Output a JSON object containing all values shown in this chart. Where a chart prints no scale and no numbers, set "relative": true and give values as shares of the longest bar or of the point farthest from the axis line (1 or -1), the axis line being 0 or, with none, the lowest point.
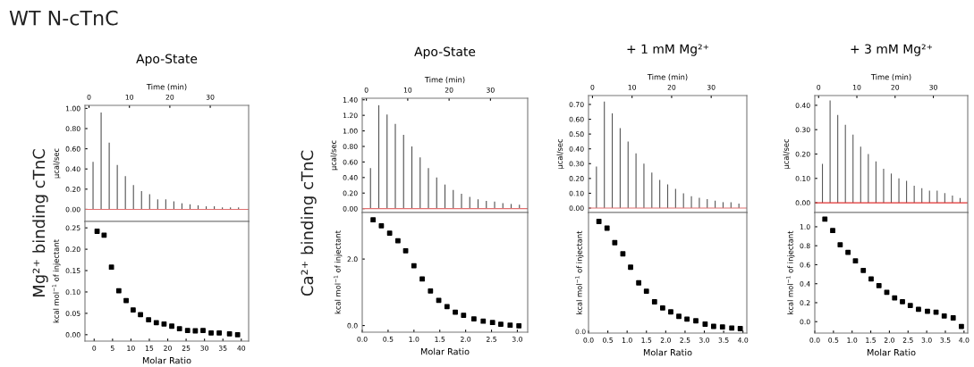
{
  "chart_data": [
    {
      "type": "bar",
      "title": "Apo-State",
      "xlabel": "Time (min)",
      "ylabel": "µcal/sec",
      "annotations": [
        "WT N-cTnC",
        "Mg²⁺ binding cTnC"
      ],
      "xlim": [
        -1,
        39.5
      ],
      "xticks": [
        0,
        10,
        20,
        30
      ],
      "ylim": [
        -0.12,
        1.03
      ],
      "yticks": [
        {
          "value": 0,
          "label": "0.00"
        },
        {
          "value": 0.2,
          "label": "0.20"
        },
        {
          "value": 0.4,
          "label": "0.40"
        },
        {
          "value": 0.6,
          "label": "0.60"
        },
        {
          "value": 0.8,
          "label": "0.80"
        },
        {
          "value": 1.0,
          "label": "1.00"
        }
      ],
      "series": [
        {
          "type": "bar",
          "color": "#555555",
          "x": [
            1,
            3,
            5,
            7,
            9,
            11,
            13,
            15,
            17,
            19,
            21,
            23,
            25,
            27,
            29,
            31,
            33,
            35,
            37
          ],
          "values": [
            0.47,
            0.96,
            0.66,
            0.44,
            0.33,
            0.24,
            0.18,
            0.15,
            0.1,
            0.1,
            0.08,
            0.06,
            0.05,
            0.04,
            0.03,
            0.03,
            0.02,
            0.02,
            0.02
          ]
        },
        {
          "type": "line",
          "color": "#e07070",
          "x": [
            -1,
            39.5
          ],
          "values": [
            0,
            0
          ]
        }
      ]
    },
    {
      "type": "scatter",
      "xlabel": "Molar Ratio",
      "ylabel": "kcal mol$^{−1}$ of injectant",
      "marker": "square",
      "xlim": [
        -2.5,
        42
      ],
      "xticks": [
        0,
        5,
        10,
        15,
        20,
        25,
        30,
        35,
        40
      ],
      "ylim": [
        -0.015,
        0.265
      ],
      "yticks": [
        {
          "value": 0,
          "label": "0.00"
        },
        {
          "value": 0.05,
          "label": "0.05"
        },
        {
          "value": 0.1,
          "label": "0.10"
        },
        {
          "value": 0.15,
          "label": "0.15"
        },
        {
          "value": 0.2,
          "label": "0.20"
        },
        {
          "value": 0.25,
          "label": "0.25"
        }
      ],
      "series": [
        {
          "color": "#000000",
          "x": [
            0.8,
            2.7,
            4.7,
            6.7,
            8.7,
            10.6,
            12.6,
            14.8,
            16.9,
            19,
            21.1,
            23.2,
            25.4,
            27.5,
            29.6,
            31.8,
            34,
            36.8,
            39
          ],
          "values": [
            0.242,
            0.233,
            0.158,
            0.103,
            0.08,
            0.058,
            0.047,
            0.035,
            0.028,
            0.025,
            0.02,
            0.014,
            0.01,
            0.009,
            0.01,
            0.004,
            0.004,
            0.002,
            0.0
          ]
        }
      ]
    },
    {
      "type": "bar",
      "title": "Apo-State",
      "xlabel": "Time (min)",
      "ylabel": "µcal/sec",
      "annotations": [
        "Ca²⁺ binding cTnC"
      ],
      "xlim": [
        -1,
        39
      ],
      "xticks": [
        0,
        10,
        20,
        30
      ],
      "ylim": [
        -0.05,
        1.42
      ],
      "yticks": [
        {
          "value": 0,
          "label": "0.00"
        },
        {
          "value": 0.2,
          "label": "0.20"
        },
        {
          "value": 0.4,
          "label": "0.40"
        },
        {
          "value": 0.6,
          "label": "0.60"
        },
        {
          "value": 0.8,
          "label": "0.80"
        },
        {
          "value": 1.0,
          "label": "1.00"
        },
        {
          "value": 1.2,
          "label": "1.20"
        },
        {
          "value": 1.4,
          "label": "1.40"
        }
      ],
      "series": [
        {
          "type": "bar",
          "color": "#555555",
          "x": [
            1,
            3,
            5,
            7,
            9,
            11,
            13,
            15,
            17,
            19,
            21,
            23,
            25,
            27,
            29,
            31,
            33,
            35,
            37
          ],
          "values": [
            0.52,
            1.33,
            1.21,
            1.09,
            0.95,
            0.8,
            0.66,
            0.52,
            0.4,
            0.31,
            0.24,
            0.19,
            0.15,
            0.12,
            0.1,
            0.09,
            0.07,
            0.06,
            0.05
          ]
        },
        {
          "type": "line",
          "color": "#e07070",
          "x": [
            -1,
            39
          ],
          "values": [
            0,
            0
          ]
        }
      ]
    },
    {
      "type": "scatter",
      "xlabel": "Molar Ratio",
      "ylabel": "kcal mol$^{−1}$ of injectant",
      "marker": "square",
      "xlim": [
        0,
        3.2
      ],
      "xticks": [
        {
          "value": 0,
          "label": "0.0"
        },
        {
          "value": 0.5,
          "label": "0.5"
        },
        {
          "value": 1,
          "label": "1.0"
        },
        {
          "value": 1.5,
          "label": "1.5"
        },
        {
          "value": 2,
          "label": "2.0"
        },
        {
          "value": 2.5,
          "label": "2.5"
        },
        {
          "value": 3,
          "label": "3.0"
        }
      ],
      "ylim": [
        -0.2,
        3.4
      ],
      "yticks": [
        {
          "value": 0,
          "label": "0.0"
        },
        {
          "value": 2,
          "label": "2.0"
        }
      ],
      "series": [
        {
          "color": "#000000",
          "x": [
            0.21,
            0.37,
            0.53,
            0.69,
            0.84,
            1.0,
            1.16,
            1.32,
            1.48,
            1.64,
            1.8,
            1.96,
            2.16,
            2.34,
            2.52,
            2.68,
            2.86,
            3.03
          ],
          "values": [
            3.18,
            3.0,
            2.78,
            2.55,
            2.25,
            1.8,
            1.4,
            1.04,
            0.76,
            0.57,
            0.4,
            0.31,
            0.2,
            0.13,
            0.09,
            0.04,
            0.01,
            -0.01
          ]
        }
      ]
    },
    {
      "type": "bar",
      "title": "+ 1 mM Mg²⁺",
      "xlabel": "Time (min)",
      "ylabel": "µcal/sec",
      "xlim": [
        -1,
        39
      ],
      "xticks": [
        0,
        10,
        20,
        30
      ],
      "ylim": [
        -0.03,
        0.76
      ],
      "yticks": [
        {
          "value": 0,
          "label": "0.00"
        },
        {
          "value": 0.1,
          "label": "0.10"
        },
        {
          "value": 0.2,
          "label": "0.20"
        },
        {
          "value": 0.3,
          "label": "0.30"
        },
        {
          "value": 0.4,
          "label": "0.40"
        },
        {
          "value": 0.5,
          "label": "0.50"
        },
        {
          "value": 0.6,
          "label": "0.60"
        },
        {
          "value": 0.7,
          "label": "0.70"
        }
      ],
      "series": [
        {
          "type": "bar",
          "color": "#555555",
          "x": [
            1,
            3,
            5,
            7,
            9,
            11,
            13,
            15,
            17,
            19,
            21,
            23,
            25,
            27,
            29,
            31,
            33,
            35,
            37
          ],
          "values": [
            0.28,
            0.72,
            0.64,
            0.54,
            0.45,
            0.37,
            0.3,
            0.24,
            0.19,
            0.16,
            0.13,
            0.1,
            0.08,
            0.07,
            0.06,
            0.05,
            0.04,
            0.04,
            0.03
          ]
        },
        {
          "type": "line",
          "color": "#e07070",
          "x": [
            -1,
            39
          ],
          "values": [
            0,
            0
          ]
        }
      ]
    },
    {
      "type": "scatter",
      "xlabel": "Molar Ratio",
      "ylabel": "kcal mol$^{−1}$ of injectant",
      "marker": "square",
      "relative": true,
      "annotations": [
        "0.0"
      ],
      "xlim": [
        0,
        4.1
      ],
      "xticks": [
        {
          "value": 0,
          "label": "0.0"
        },
        {
          "value": 0.5,
          "label": "0.5"
        },
        {
          "value": 1,
          "label": "1.0"
        },
        {
          "value": 1.5,
          "label": "1.5"
        },
        {
          "value": 2,
          "label": "2.0"
        },
        {
          "value": 2.5,
          "label": "2.5"
        },
        {
          "value": 3,
          "label": "3.0"
        },
        {
          "value": 3.5,
          "label": "3.5"
        },
        {
          "value": 4,
          "label": "4.0"
        }
      ],
      "series": [
        {
          "color": "#000000",
          "x": [
            0.27,
            0.48,
            0.68,
            0.89,
            1.09,
            1.3,
            1.5,
            1.71,
            1.92,
            2.13,
            2.34,
            2.55,
            2.78,
            3.02,
            3.24,
            3.47,
            3.71,
            3.93
          ],
          "values": [
            1.0,
            0.94,
            0.81,
            0.71,
            0.59,
            0.45,
            0.375,
            0.28,
            0.225,
            0.19,
            0.15,
            0.125,
            0.11,
            0.08,
            0.06,
            0.055,
            0.045,
            0.04
          ]
        }
      ]
    },
    {
      "type": "bar",
      "title": "+ 3 mM Mg²⁺",
      "xlabel": "Time (min)",
      "ylabel": "µcal/sec",
      "xlim": [
        -1,
        39
      ],
      "xticks": [
        0,
        10,
        20,
        30
      ],
      "ylim": [
        -0.04,
        0.44
      ],
      "yticks": [
        {
          "value": 0,
          "label": "0.00"
        },
        {
          "value": 0.1,
          "label": "0.10"
        },
        {
          "value": 0.2,
          "label": "0.20"
        },
        {
          "value": 0.3,
          "label": "0.30"
        },
        {
          "value": 0.4,
          "label": "0.40"
        }
      ],
      "series": [
        {
          "type": "bar",
          "color": "#555555",
          "x": [
            1,
            3,
            5,
            7,
            9,
            11,
            13,
            15,
            17,
            19,
            21,
            23,
            25,
            27,
            29,
            31,
            33,
            35,
            37
          ],
          "values": [
            0.16,
            0.42,
            0.36,
            0.32,
            0.28,
            0.23,
            0.2,
            0.17,
            0.14,
            0.12,
            0.1,
            0.09,
            0.07,
            0.06,
            0.05,
            0.05,
            0.04,
            0.03,
            0.02
          ]
        },
        {
          "type": "line",
          "color": "#e03030",
          "x": [
            -1,
            39
          ],
          "values": [
            0,
            0
          ]
        }
      ]
    },
    {
      "type": "scatter",
      "xlabel": "Molar Ratio",
      "ylabel": "kcal mol$^{−1}$ of injectant",
      "marker": "square",
      "xlim": [
        0,
        4.1
      ],
      "xticks": [
        {
          "value": 0,
          "label": "0.0"
        },
        {
          "value": 0.5,
          "label": "0.5"
        },
        {
          "value": 1,
          "label": "1.0"
        },
        {
          "value": 1.5,
          "label": "1.5"
        },
        {
          "value": 2,
          "label": "2.0"
        },
        {
          "value": 2.5,
          "label": "2.5"
        },
        {
          "value": 3,
          "label": "3.0"
        },
        {
          "value": 3.5,
          "label": "3.5"
        },
        {
          "value": 4,
          "label": "4.0"
        }
      ],
      "ylim": [
        -0.12,
        1.15
      ],
      "yticks": [
        {
          "value": 0,
          "label": "0.0"
        },
        {
          "value": 0.2,
          "label": "0.2"
        },
        {
          "value": 0.4,
          "label": "0.4"
        },
        {
          "value": 0.6,
          "label": "0.6"
        },
        {
          "value": 0.8,
          "label": "0.8"
        },
        {
          "value": 1.0,
          "label": "1.0"
        }
      ],
      "series": [
        {
          "color": "#000000",
          "x": [
            0.27,
            0.48,
            0.68,
            0.89,
            1.09,
            1.3,
            1.51,
            1.72,
            1.93,
            2.14,
            2.35,
            2.56,
            2.78,
            3.02,
            3.25,
            3.47,
            3.71,
            3.93
          ],
          "values": [
            1.08,
            0.96,
            0.81,
            0.73,
            0.64,
            0.54,
            0.45,
            0.38,
            0.31,
            0.25,
            0.21,
            0.17,
            0.13,
            0.11,
            0.1,
            0.06,
            0.04,
            -0.05
          ]
        }
      ]
    }
  ]
}
